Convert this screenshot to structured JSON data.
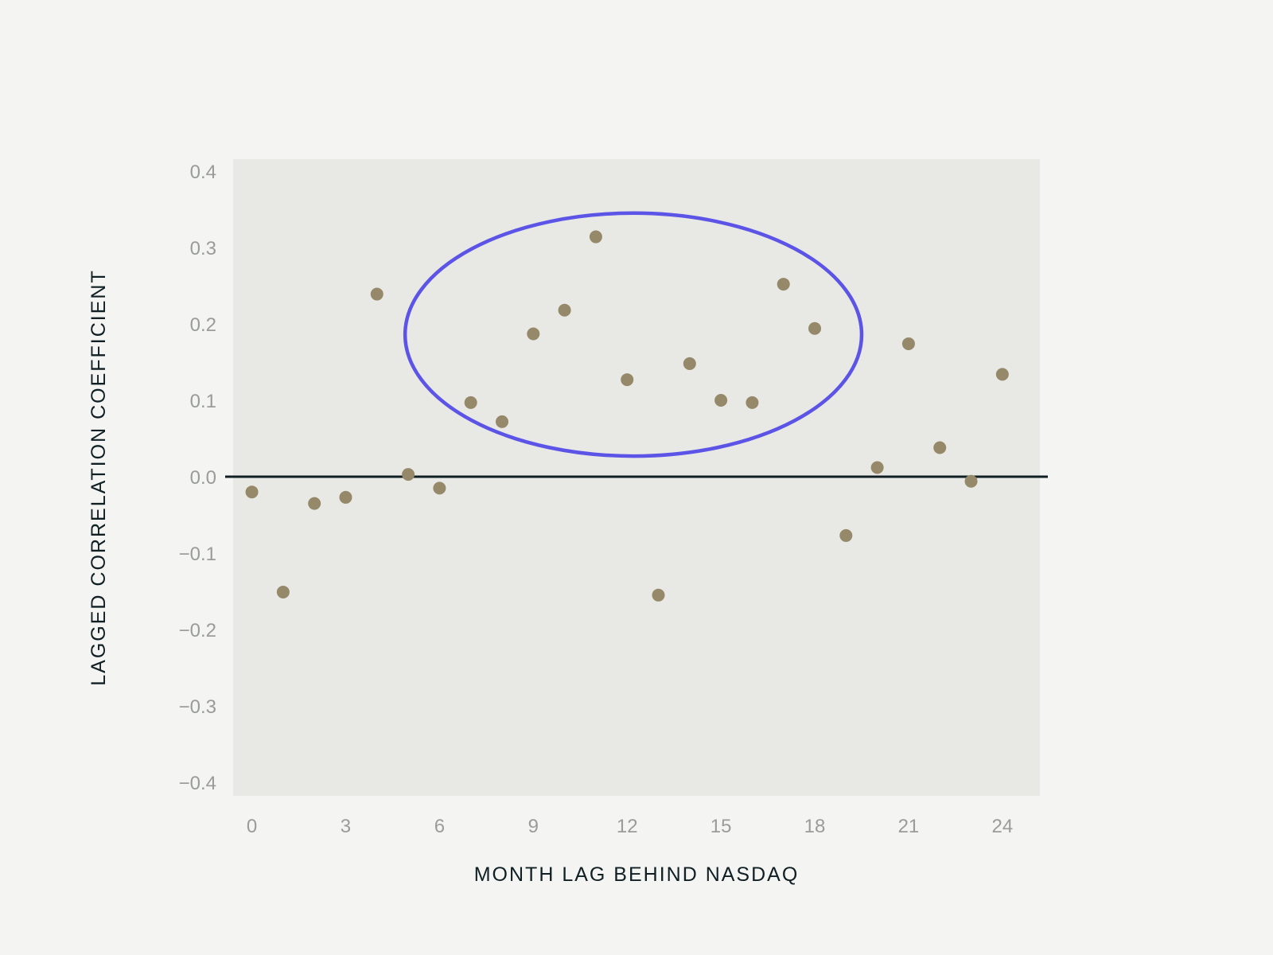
{
  "chart_data": {
    "type": "scatter",
    "title": "",
    "xlabel": "MONTH LAG BEHIND NASDAQ",
    "ylabel": "LAGGED CORRELATION COEFFICIENT",
    "xlim": [
      -0.6,
      25.2
    ],
    "ylim": [
      -0.4,
      0.4
    ],
    "x_ticks": [
      0,
      3,
      6,
      9,
      12,
      15,
      18,
      21,
      24
    ],
    "y_ticks": [
      0.4,
      0.3,
      0.2,
      0.1,
      0.0,
      -0.1,
      -0.2,
      -0.3,
      -0.4
    ],
    "y_tick_labels": [
      "0.4",
      "0.3",
      "0.2",
      "0.1",
      "0.0",
      "−0.1",
      "−0.2",
      "−0.3",
      "−0.4"
    ],
    "grid": false,
    "legend": "none",
    "zero_line": true,
    "series": [
      {
        "x": [
          0,
          1,
          2,
          3,
          4,
          5,
          6,
          7,
          8,
          9,
          10,
          11,
          12,
          13,
          14,
          15,
          16,
          17,
          18,
          19,
          20,
          21,
          22,
          23,
          24
        ],
        "y": [
          -0.02,
          -0.151,
          -0.035,
          -0.027,
          0.239,
          0.003,
          -0.015,
          0.097,
          0.072,
          0.187,
          0.218,
          0.314,
          0.127,
          -0.155,
          0.148,
          0.1,
          0.097,
          0.252,
          0.194,
          -0.077,
          0.012,
          0.174,
          0.038,
          -0.006,
          0.134
        ]
      }
    ],
    "highlight_ellipse": {
      "center_x": 12.2,
      "center_y": 0.186,
      "radius_x": 7.3,
      "radius_y": 0.159
    },
    "colors": {
      "background": "#f4f4f2",
      "plot_area": "#e8e8e5",
      "point": "#968969",
      "ellipse": "#5b54e6",
      "zero_line": "#0f1f24",
      "tick_text": "#9a9c98",
      "title_text": "#0f1f24"
    }
  }
}
